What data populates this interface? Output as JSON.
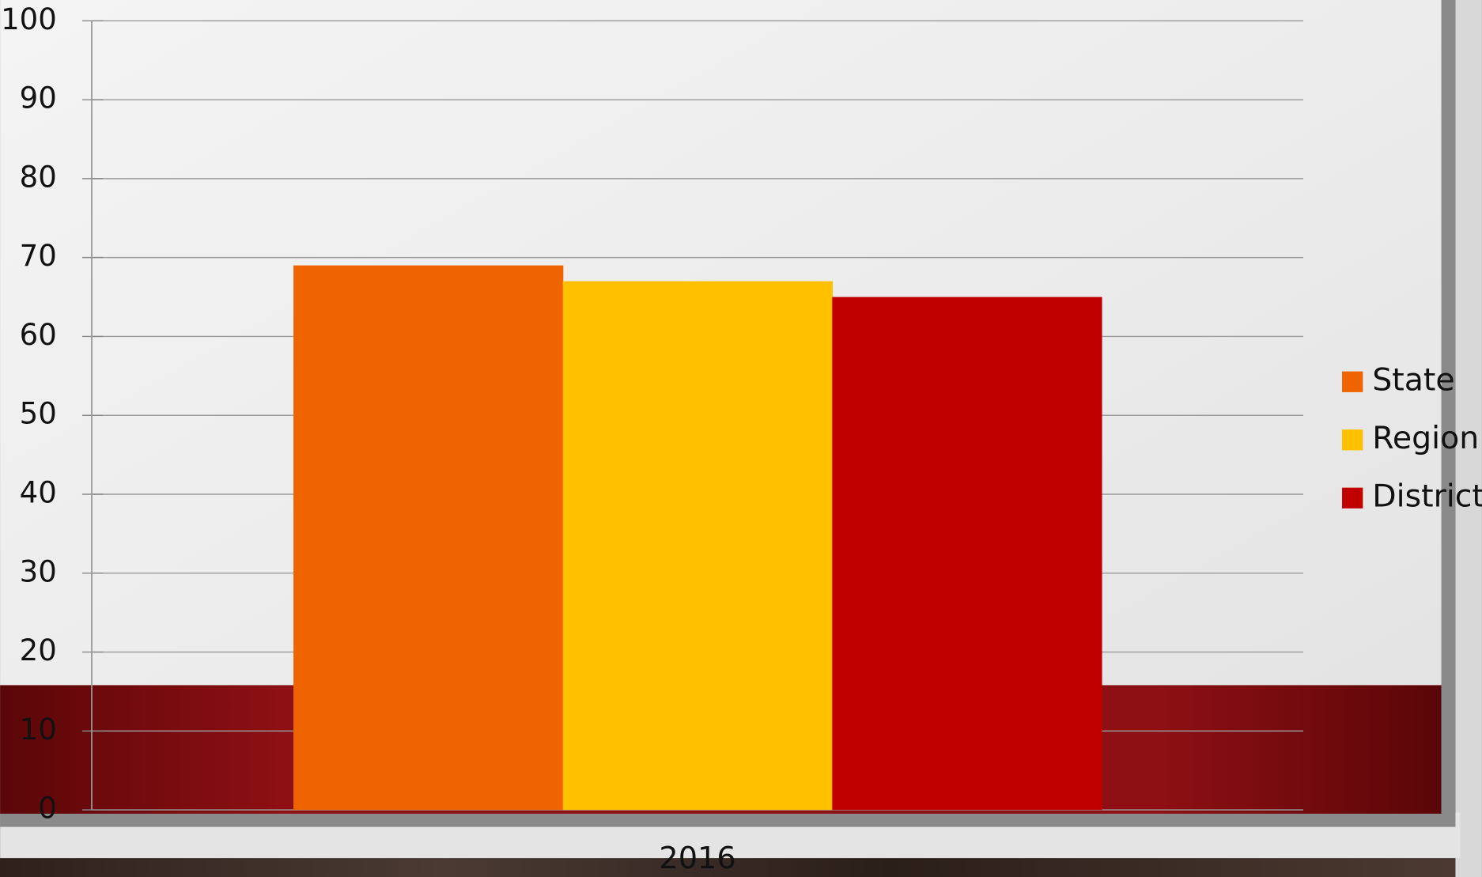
{
  "chart_data": {
    "type": "bar",
    "categories": [
      "2016"
    ],
    "series": [
      {
        "name": "State",
        "color": "#f06400",
        "values": [
          69
        ]
      },
      {
        "name": "Region",
        "color": "#ffc000",
        "values": [
          67
        ]
      },
      {
        "name": "District",
        "color": "#c00000",
        "values": [
          65
        ]
      }
    ],
    "ylim": [
      0,
      100
    ],
    "yticks": [
      0,
      10,
      20,
      30,
      40,
      50,
      60,
      70,
      80,
      90,
      100
    ],
    "grid": true,
    "legend": "right"
  }
}
